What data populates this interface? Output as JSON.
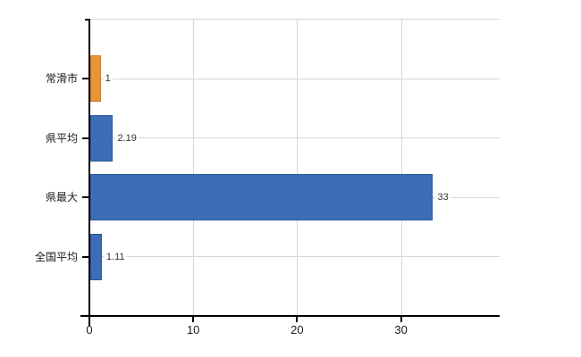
{
  "chart_data": {
    "type": "bar",
    "orientation": "horizontal",
    "title": "",
    "xlabel": "",
    "ylabel": "",
    "categories": [
      "常滑市",
      "県平均",
      "県最大",
      "全国平均"
    ],
    "values": [
      1,
      2.19,
      33,
      1.11
    ],
    "value_labels": [
      "1",
      "2.19",
      "33",
      "1.11"
    ],
    "x_ticks": [
      0,
      10,
      20,
      30
    ],
    "x_tick_labels": [
      "0",
      "10",
      "20",
      "30"
    ],
    "xlim": [
      0,
      39.5
    ],
    "grid": true,
    "legend": "none",
    "bar_colors": [
      "#E8953C",
      "#3D6DB4",
      "#3D6DB4",
      "#3D6DB4"
    ],
    "bar_border_colors": [
      "#C67C2B",
      "#2D5A99",
      "#2D5A99",
      "#2D5A99"
    ]
  },
  "colors": {
    "background": "#FFFFFF",
    "axis": "#000000",
    "grid": "#D6D6D6",
    "category_text": "#1A1A1A",
    "value_text": "#333333",
    "highlight_bar": "#E8953C",
    "default_bar": "#3D6DB4"
  }
}
